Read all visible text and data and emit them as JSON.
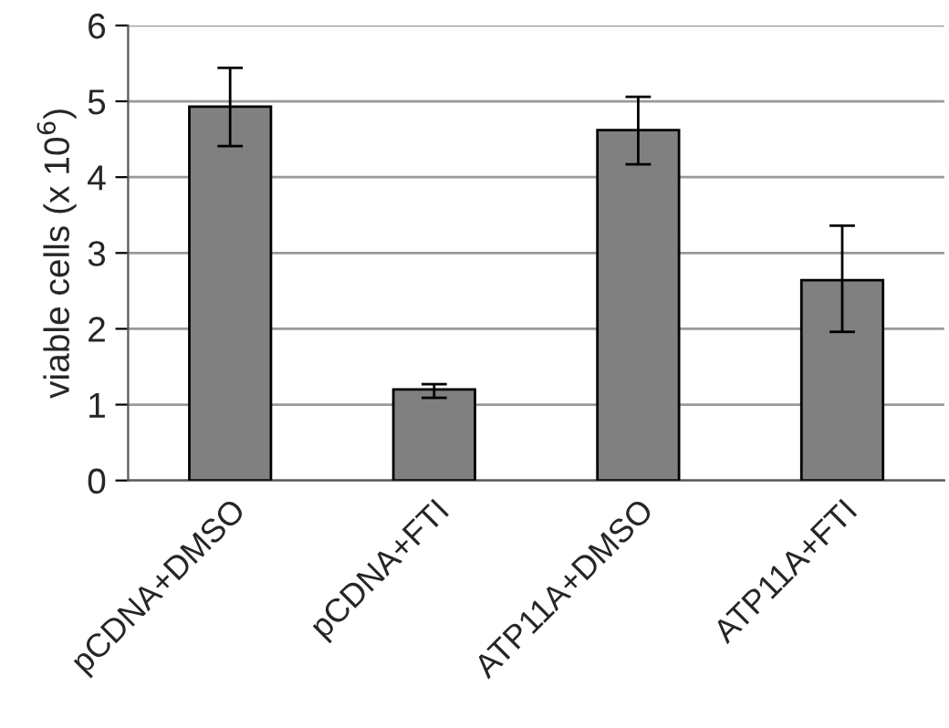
{
  "chart_data": {
    "type": "bar",
    "ylabel": "viable cells (x 10$^{6}$)",
    "categories": [
      "pCDNA+DMSO",
      "pCDNA+FTI",
      "ATP11A+DMSO",
      "ATP11A+FTI"
    ],
    "values": [
      4.93,
      1.2,
      4.62,
      2.64
    ],
    "errors": [
      [
        4.41,
        5.44
      ],
      [
        1.09,
        1.27
      ],
      [
        4.17,
        5.06
      ],
      [
        1.96,
        3.36
      ]
    ],
    "color": "#808080",
    "ylim": [
      0,
      6
    ],
    "yticks": [
      0,
      1,
      2,
      3,
      4,
      5,
      6
    ],
    "grid": "y"
  }
}
